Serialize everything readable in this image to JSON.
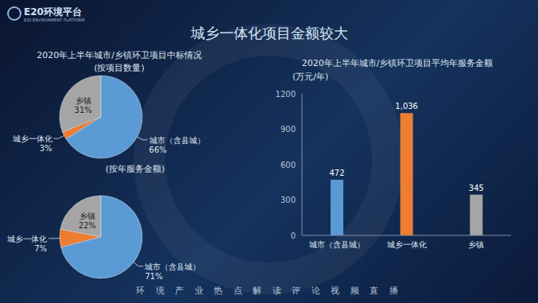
{
  "logo": {
    "title": "E20环境平台",
    "subtitle": "E20 ENVIRONMENT PLATFORM"
  },
  "title": "城乡一体化项目金额较大",
  "footer": "环 境 产 业 热 点 解 读 评 论 视 频 直 播",
  "chart_data": [
    {
      "type": "pie",
      "title": "2020年上半年城市/乡镇环卫项目中标情况",
      "subtitle": "(按项目数量)",
      "categories": [
        "乡镇",
        "城乡一体化",
        "城市（含县城）"
      ],
      "values": [
        31,
        3,
        66
      ],
      "value_labels": [
        "31%",
        "3%",
        "66%"
      ],
      "colors": [
        "#a5a5a5",
        "#ed7d31",
        "#5b9bd5"
      ],
      "data_labels": true
    },
    {
      "type": "pie",
      "title": "(按年服务金额)",
      "categories": [
        "乡镇",
        "城乡一体化",
        "城市（含县城）"
      ],
      "values": [
        22,
        7,
        71
      ],
      "value_labels": [
        "22%",
        "7%",
        "71%"
      ],
      "colors": [
        "#a5a5a5",
        "#ed7d31",
        "#5b9bd5"
      ],
      "data_labels": true
    },
    {
      "type": "bar",
      "title": "2020年上半年城市/乡镇环卫项目平均年服务金额",
      "subtitle": "(万元/年)",
      "categories": [
        "城市（含县城）",
        "城乡一体化",
        "乡镇"
      ],
      "values": [
        472,
        1036,
        345
      ],
      "value_labels": [
        "472",
        "1,036",
        "345"
      ],
      "colors": [
        "#5b9bd5",
        "#ed7d31",
        "#a5a5a5"
      ],
      "ylim": [
        0,
        1200
      ],
      "yticks": [
        0,
        300,
        600,
        900,
        1200
      ],
      "grid": false,
      "data_labels": true
    }
  ]
}
